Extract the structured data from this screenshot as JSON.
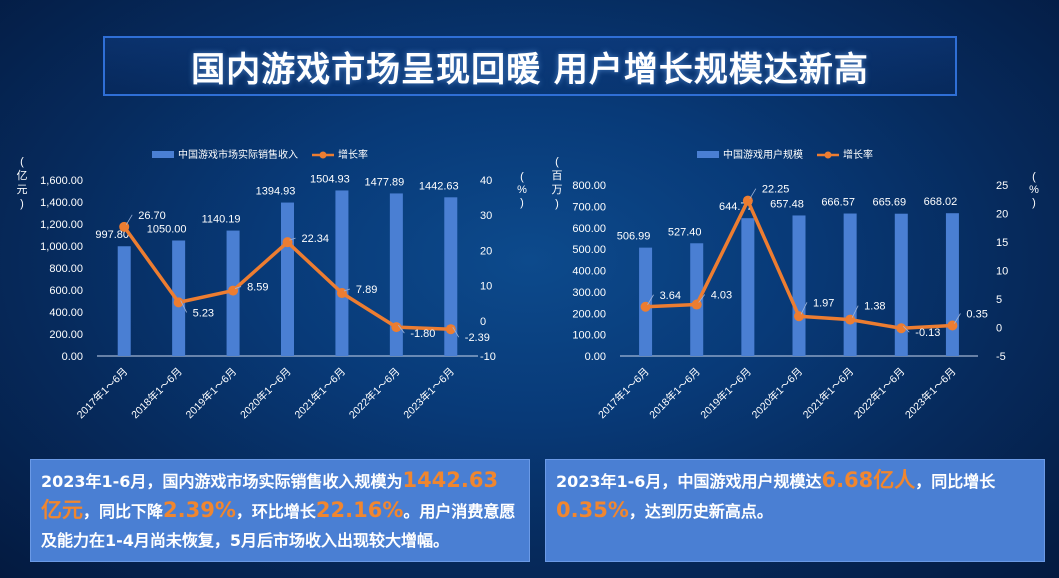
{
  "title": "国内游戏市场呈现回暖 用户增长规模达新高",
  "colors": {
    "bar": "#4a7fd3",
    "line": "#ed7d31",
    "text": "#ffffff",
    "axis": "#c8d6ee"
  },
  "chart_data": [
    {
      "type": "bar",
      "legend": [
        "中国游戏市场实际销售收入",
        "增长率"
      ],
      "ylabel_left": "亿元",
      "ylabel_right": "%",
      "categories": [
        "2017年1～6月",
        "2018年1～6月",
        "2019年1～6月",
        "2020年1～6月",
        "2021年1～6月",
        "2022年1～6月",
        "2023年1～6月"
      ],
      "series": [
        {
          "name": "中国游戏市场实际销售收入",
          "type": "bar",
          "axis": "left",
          "values": [
            997.8,
            1050.0,
            1140.19,
            1394.93,
            1504.93,
            1477.89,
            1442.63
          ],
          "labels": [
            "997.80",
            "1050.00",
            "1140.19",
            "1394.93",
            "1504.93",
            "1477.89",
            "1442.63"
          ]
        },
        {
          "name": "增长率",
          "type": "line",
          "axis": "right",
          "values": [
            26.7,
            5.23,
            8.59,
            22.34,
            7.89,
            -1.8,
            -2.39
          ],
          "labels": [
            "26.70",
            "5.23",
            "8.59",
            "22.34",
            "7.89",
            "-1.80",
            "-2.39"
          ]
        }
      ],
      "yleft": {
        "min": 0,
        "max": 1600,
        "ticks": [
          "0.00",
          "200.00",
          "400.00",
          "600.00",
          "800.00",
          "1,000.00",
          "1,200.00",
          "1,400.00",
          "1,600.00"
        ]
      },
      "yright": {
        "min": -10,
        "max": 40,
        "ticks": [
          "-10",
          "0",
          "10",
          "20",
          "30",
          "40"
        ]
      },
      "legend_position": "top"
    },
    {
      "type": "bar",
      "legend": [
        "中国游戏用户规模",
        "增长率"
      ],
      "ylabel_left": "百万",
      "ylabel_right": "%",
      "categories": [
        "2017年1～6月",
        "2018年1～6月",
        "2019年1～6月",
        "2020年1～6月",
        "2021年1～6月",
        "2022年1～6月",
        "2023年1～6月"
      ],
      "series": [
        {
          "name": "中国游戏用户规模",
          "type": "bar",
          "axis": "left",
          "values": [
            506.99,
            527.4,
            644.77,
            657.48,
            666.57,
            665.69,
            668.02
          ],
          "labels": [
            "506.99",
            "527.40",
            "644.77",
            "657.48",
            "666.57",
            "665.69",
            "668.02"
          ]
        },
        {
          "name": "增长率",
          "type": "line",
          "axis": "right",
          "values": [
            3.64,
            4.03,
            22.25,
            1.97,
            1.38,
            -0.13,
            0.35
          ],
          "labels": [
            "3.64",
            "4.03",
            "22.25",
            "1.97",
            "1.38",
            "-0.13",
            "0.35"
          ]
        }
      ],
      "yleft": {
        "min": 0,
        "max": 800,
        "ticks": [
          "0.00",
          "100.00",
          "200.00",
          "300.00",
          "400.00",
          "500.00",
          "600.00",
          "700.00",
          "800.00"
        ]
      },
      "yright": {
        "min": -5,
        "max": 25,
        "ticks": [
          "-5",
          "0",
          "5",
          "10",
          "15",
          "20",
          "25"
        ]
      },
      "legend_position": "top"
    }
  ],
  "notes": {
    "left": {
      "p1": "2023年1-6月，国内游戏市场实际销售收入规模为",
      "h1": "1442.63亿元",
      "p2": "，同比下降",
      "h2": "2.39%",
      "p3": "，环比增长",
      "h3": "22.16%",
      "p4": "。用户消费意愿及能力在1-4月尚未恢复，5月后市场收入出现较大增幅。"
    },
    "right": {
      "p1": "2023年1-6月，中国游戏用户规模达",
      "h1": "6.68亿人",
      "p2": "，同比增长",
      "h2": "0.35%",
      "p3": "，达到历史新高点。"
    }
  }
}
